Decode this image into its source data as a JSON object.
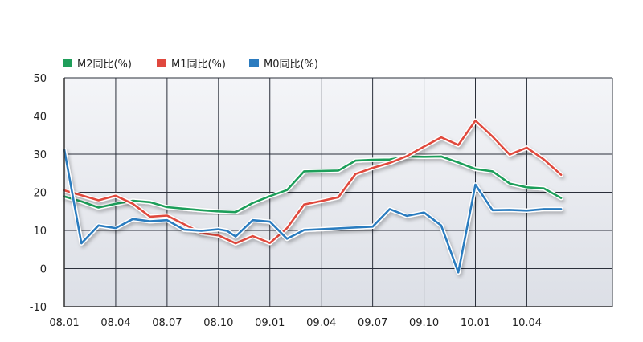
{
  "colors": {
    "m2": "#1f9e5a",
    "m1": "#e0483e",
    "m0": "#2b7bbf",
    "grid": "#2a2f3a",
    "axis": "#333333",
    "plot_bg_top": "#f4f5f8",
    "plot_bg_bottom": "#dcdfe6"
  },
  "chart_data": {
    "type": "line",
    "legend_position": "top-left",
    "grid": true,
    "ylim": [
      -10,
      50
    ],
    "xlim": [
      0,
      32
    ],
    "y_ticks": [
      50,
      40,
      30,
      20,
      10,
      0,
      -10
    ],
    "x_ticks": [
      {
        "i": 0,
        "label": "08.01"
      },
      {
        "i": 3,
        "label": "08.04"
      },
      {
        "i": 6,
        "label": "08.07"
      },
      {
        "i": 9,
        "label": "08.10"
      },
      {
        "i": 12,
        "label": "09.01"
      },
      {
        "i": 15,
        "label": "09.04"
      },
      {
        "i": 18,
        "label": "09.07"
      },
      {
        "i": 21,
        "label": "09.10"
      },
      {
        "i": 24,
        "label": "10.01"
      },
      {
        "i": 27,
        "label": "10.04"
      }
    ],
    "series": [
      {
        "name": "M2同比(%)",
        "color_key": "m2",
        "x": [
          0,
          1,
          2,
          3,
          4,
          5,
          6,
          7,
          8,
          9,
          10,
          11,
          12,
          13,
          14,
          15,
          16,
          17,
          18,
          19,
          20,
          21,
          22,
          23,
          24,
          25,
          26,
          27,
          28,
          29
        ],
        "values": [
          18.9,
          17.6,
          16.0,
          17.0,
          17.8,
          17.4,
          16.1,
          15.7,
          15.3,
          15.0,
          14.8,
          17.2,
          19.0,
          20.6,
          25.5,
          25.6,
          25.7,
          28.3,
          28.5,
          28.6,
          29.4,
          29.3,
          29.4,
          27.8,
          26.1,
          25.5,
          22.3,
          21.3,
          21.0,
          18.5
        ]
      },
      {
        "name": "M1同比(%)",
        "color_key": "m1",
        "x": [
          0,
          1,
          2,
          3,
          4,
          5,
          6,
          7,
          8,
          9,
          10,
          11,
          12,
          13,
          14,
          15,
          16,
          17,
          18,
          19,
          20,
          21,
          22,
          23,
          24,
          25,
          26,
          27,
          28,
          29
        ],
        "values": [
          20.5,
          19.2,
          17.9,
          19.1,
          17.0,
          13.6,
          13.9,
          11.6,
          9.3,
          8.7,
          6.6,
          8.5,
          6.7,
          10.6,
          16.8,
          17.7,
          18.7,
          24.8,
          26.4,
          27.7,
          29.5,
          32.0,
          34.4,
          32.4,
          38.8,
          34.6,
          29.9,
          31.7,
          28.6,
          24.6
        ]
      },
      {
        "name": "M0同比(%)",
        "color_key": "m0",
        "x": [
          0,
          1,
          2,
          3,
          4,
          5,
          6,
          7,
          8,
          9,
          9.5,
          10,
          11,
          12,
          13,
          14,
          18,
          19,
          20,
          21,
          22,
          23,
          24,
          25,
          26,
          27,
          28,
          29
        ],
        "values": [
          31.2,
          6.6,
          11.3,
          10.6,
          13.0,
          12.4,
          12.7,
          10.2,
          9.9,
          10.3,
          9.9,
          8.4,
          12.7,
          12.3,
          7.8,
          10.1,
          11.0,
          15.6,
          13.8,
          14.7,
          11.3,
          -1.0,
          22.0,
          15.3,
          15.4,
          15.2,
          15.6,
          15.6
        ]
      }
    ]
  }
}
